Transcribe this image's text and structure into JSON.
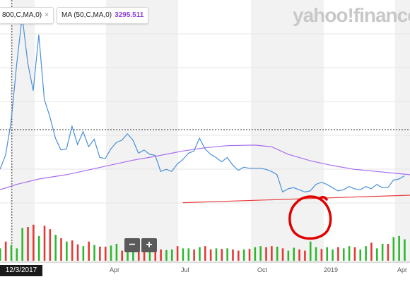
{
  "legend": {
    "ma_short_label": "800,C,MA,0)",
    "ma_long_label": "MA (50,C,MA,0)",
    "ma_long_value": "3295.511",
    "close_glyph": "×"
  },
  "brand": {
    "logo_text": "yahoo!finance",
    "logo_color": "#c8c8c8"
  },
  "zoom": {
    "minus_label": "−",
    "plus_label": "+"
  },
  "crosshair": {
    "date_label": "12/3/2017"
  },
  "x_axis": {
    "ticks": [
      "Apr",
      "Jul",
      "Oct",
      "2019",
      "Apr"
    ]
  },
  "annotation": {
    "circle_color": "#e00000",
    "trendline_color": "#e84040"
  },
  "colors": {
    "price": "#4a90d9",
    "ma": "#a66ff0",
    "vol_up": "#2eb82e",
    "vol_down": "#e53935",
    "band": "#f2f2f2"
  },
  "chart_data": {
    "type": "line",
    "x_range": [
      "2017-11-18",
      "2019-04-20"
    ],
    "series": [
      {
        "kind": "price",
        "x": [
          "2017-11-18",
          "2017-11-25",
          "2017-12-02",
          "2017-12-09",
          "2017-12-16",
          "2017-12-23",
          "2017-12-30",
          "2018-01-06",
          "2018-01-13",
          "2018-01-20",
          "2018-01-27",
          "2018-02-03",
          "2018-02-10",
          "2018-02-17",
          "2018-02-24",
          "2018-03-03",
          "2018-03-10",
          "2018-03-17",
          "2018-03-24",
          "2018-03-31",
          "2018-04-07",
          "2018-04-14",
          "2018-04-21",
          "2018-04-28",
          "2018-05-05",
          "2018-05-12",
          "2018-05-19",
          "2018-05-26",
          "2018-06-02",
          "2018-06-09",
          "2018-06-16",
          "2018-06-23",
          "2018-06-30",
          "2018-07-07",
          "2018-07-14",
          "2018-07-21",
          "2018-07-28",
          "2018-08-04",
          "2018-08-11",
          "2018-08-18",
          "2018-08-25",
          "2018-09-01",
          "2018-09-08",
          "2018-09-15",
          "2018-09-22",
          "2018-09-29",
          "2018-10-06",
          "2018-10-13",
          "2018-10-20",
          "2018-10-27",
          "2018-11-03",
          "2018-11-10",
          "2018-11-17",
          "2018-11-24",
          "2018-12-01",
          "2018-12-08",
          "2018-12-15",
          "2018-12-22",
          "2018-12-29",
          "2019-01-05",
          "2019-01-12",
          "2019-01-19",
          "2019-01-26",
          "2019-02-02",
          "2019-02-09",
          "2019-02-16",
          "2019-02-23",
          "2019-03-02",
          "2019-03-09",
          "2019-03-16",
          "2019-03-23",
          "2019-03-30",
          "2019-04-06",
          "2019-04-13"
        ],
        "y": [
          4300,
          5600,
          8700,
          14000,
          18500,
          14200,
          11600,
          16800,
          10800,
          9200,
          7200,
          6100,
          6200,
          8300,
          6600,
          7800,
          6400,
          7100,
          5400,
          5300,
          6200,
          6800,
          7000,
          7600,
          7000,
          5800,
          6100,
          5700,
          5600,
          4100,
          4300,
          4100,
          4800,
          5200,
          5800,
          6000,
          7200,
          6200,
          5700,
          5400,
          5000,
          5400,
          4700,
          4200,
          4500,
          4400,
          4400,
          4400,
          4300,
          4100,
          3800,
          2200,
          2500,
          2600,
          2400,
          2200,
          2300,
          2900,
          3100,
          2900,
          2600,
          2300,
          2400,
          2700,
          2500,
          2400,
          2700,
          2500,
          2900,
          2600,
          2600,
          3300,
          3400,
          3700
        ]
      },
      {
        "kind": "moving-average",
        "x": [
          "2017-11-18",
          "2017-12-09",
          "2018-01-06",
          "2018-02-10",
          "2018-03-10",
          "2018-04-07",
          "2018-05-05",
          "2018-06-02",
          "2018-07-07",
          "2018-08-04",
          "2018-09-01",
          "2018-10-06",
          "2018-10-27",
          "2018-11-17",
          "2018-12-15",
          "2019-01-12",
          "2019-02-09",
          "2019-03-09",
          "2019-04-06",
          "2019-04-20"
        ],
        "y": [
          2400,
          2900,
          3400,
          3800,
          4250,
          4700,
          5150,
          5500,
          6000,
          6300,
          6500,
          6550,
          6400,
          5700,
          5100,
          4650,
          4300,
          4100,
          3900,
          3800
        ]
      }
    ],
    "volume": {
      "relative_heights": [
        0.22,
        0.34,
        0.28,
        0.22,
        0.58,
        0.6,
        0.64,
        0.44,
        0.62,
        0.56,
        0.46,
        0.4,
        0.34,
        0.36,
        0.29,
        0.26,
        0.34,
        0.28,
        0.25,
        0.25,
        0.27,
        0.3,
        0.18,
        0.22,
        0.26,
        0.24,
        0.24,
        0.25,
        0.24,
        0.2,
        0.19,
        0.2,
        0.26,
        0.22,
        0.22,
        0.2,
        0.24,
        0.26,
        0.2,
        0.22,
        0.21,
        0.22,
        0.2,
        0.18,
        0.2,
        0.21,
        0.24,
        0.26,
        0.24,
        0.26,
        0.25,
        0.22,
        0.18,
        0.23,
        0.2,
        0.18,
        0.34,
        0.24,
        0.21,
        0.24,
        0.2,
        0.24,
        0.22,
        0.26,
        0.24,
        0.2,
        0.26,
        0.32,
        0.22,
        0.3,
        0.3,
        0.42,
        0.44,
        0.38
      ],
      "up": [
        1,
        0,
        1,
        1,
        1,
        0,
        0,
        1,
        0,
        0,
        1,
        0,
        1,
        0,
        0,
        1,
        0,
        1,
        0,
        0,
        1,
        1,
        0,
        1,
        1,
        0,
        0,
        1,
        0,
        0,
        1,
        1,
        0,
        1,
        1,
        0,
        1,
        0,
        0,
        1,
        0,
        1,
        0,
        0,
        1,
        0,
        1,
        1,
        0,
        0,
        1,
        0,
        1,
        1,
        0,
        0,
        1,
        1,
        0,
        1,
        1,
        0,
        1,
        1,
        0,
        1,
        1,
        0,
        1,
        1,
        0,
        1,
        1,
        1
      ]
    },
    "trendline": {
      "x": [
        "2018-07-07",
        "2019-04-20"
      ],
      "y": [
        1200,
        1900
      ]
    },
    "crosshair_date": "2017-12-03",
    "crosshair_value": 8700
  }
}
